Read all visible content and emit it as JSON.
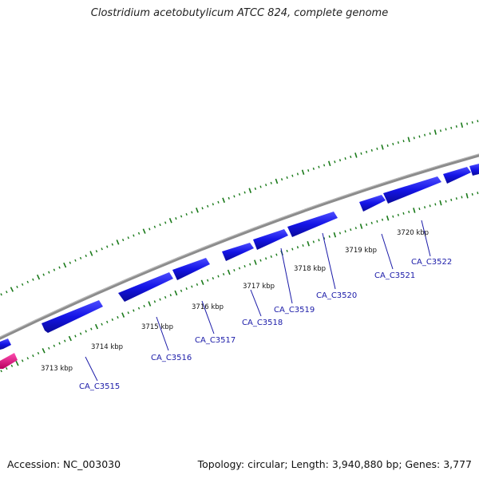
{
  "title": "Clostridium acetobutylicum ATCC 824, complete genome",
  "footer": {
    "accession": "Accession: NC_003030",
    "summary": "Topology: circular; Length: 3,940,880 bp; Genes: 3,777"
  },
  "colors": {
    "backbone": "#8c8c8c",
    "gene_forward": "#1414e6",
    "gene_other": "#e6007e",
    "ticks": "#1a7a1a",
    "gene_label": "#1a1aa8"
  },
  "ticks": [
    {
      "label": "3713 kbp"
    },
    {
      "label": "3714 kbp"
    },
    {
      "label": "3715 kbp"
    },
    {
      "label": "3716 kbp"
    },
    {
      "label": "3717 kbp"
    },
    {
      "label": "3718 kbp"
    },
    {
      "label": "3719 kbp"
    },
    {
      "label": "3720 kbp"
    }
  ],
  "genes": [
    {
      "label": "CA_C3515"
    },
    {
      "label": "CA_C3516"
    },
    {
      "label": "CA_C3517"
    },
    {
      "label": "CA_C3518"
    },
    {
      "label": "CA_C3519"
    },
    {
      "label": "CA_C3520"
    },
    {
      "label": "CA_C3521"
    },
    {
      "label": "CA_C3522"
    }
  ]
}
